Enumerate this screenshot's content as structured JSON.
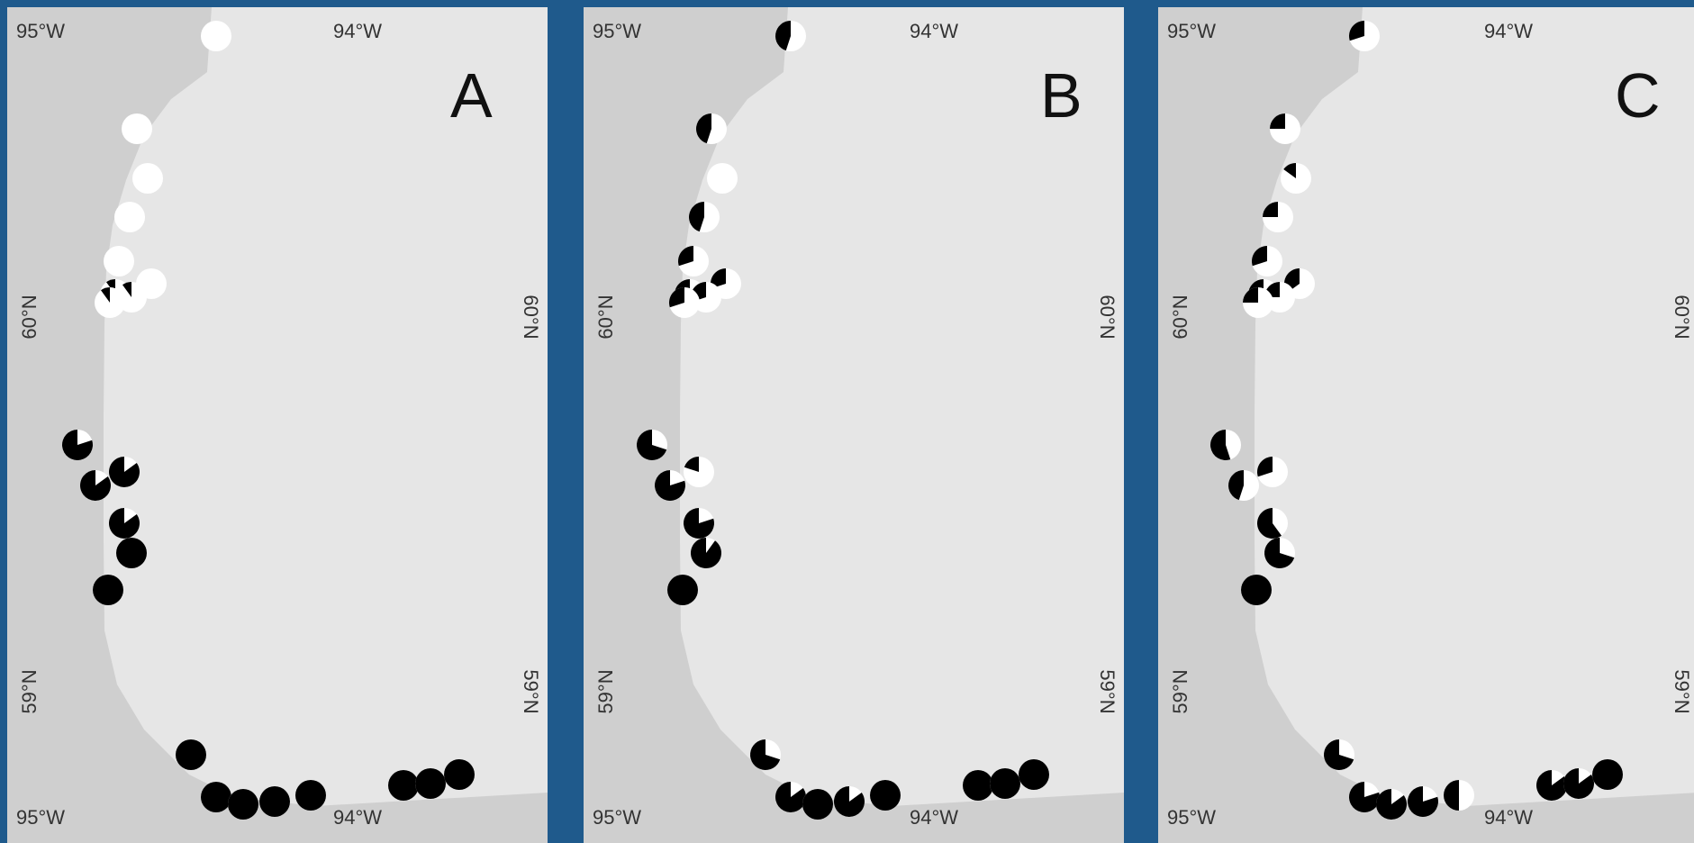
{
  "background_color": "#1f5a8c",
  "water_color": "#e6e6e6",
  "land_color": "#cfcfcf",
  "labels": {
    "lon_left_top": "95°W",
    "lon_right_top": "94°W",
    "lon_left_bottom": "95°W",
    "lon_right_bottom": "94°W",
    "lat_upper": "60°N",
    "lat_lower": "59°N"
  },
  "panels": [
    {
      "letter": "A"
    },
    {
      "letter": "B"
    },
    {
      "letter": "C"
    }
  ],
  "site_fractions_black": [
    [
      0.0,
      0.0,
      0.0,
      0.0,
      0.0,
      0.0,
      0.1,
      0.1,
      0.1,
      0.8,
      0.85,
      0.85,
      0.85,
      1.0,
      1.0,
      1.0,
      1.0,
      1.0,
      1.0,
      1.0,
      1.0,
      1.0,
      1.0
    ],
    [
      0.45,
      0.45,
      0.0,
      0.45,
      0.3,
      0.3,
      0.3,
      0.3,
      0.3,
      0.7,
      0.2,
      0.8,
      0.8,
      0.9,
      1.0,
      0.7,
      0.85,
      1.0,
      0.85,
      1.0,
      1.0,
      1.0,
      1.0
    ],
    [
      0.3,
      0.25,
      0.15,
      0.25,
      0.3,
      0.35,
      0.25,
      0.25,
      0.25,
      0.55,
      0.3,
      0.45,
      0.6,
      0.7,
      1.0,
      0.7,
      0.8,
      0.85,
      0.8,
      0.5,
      0.85,
      0.85,
      1.0
    ]
  ]
}
